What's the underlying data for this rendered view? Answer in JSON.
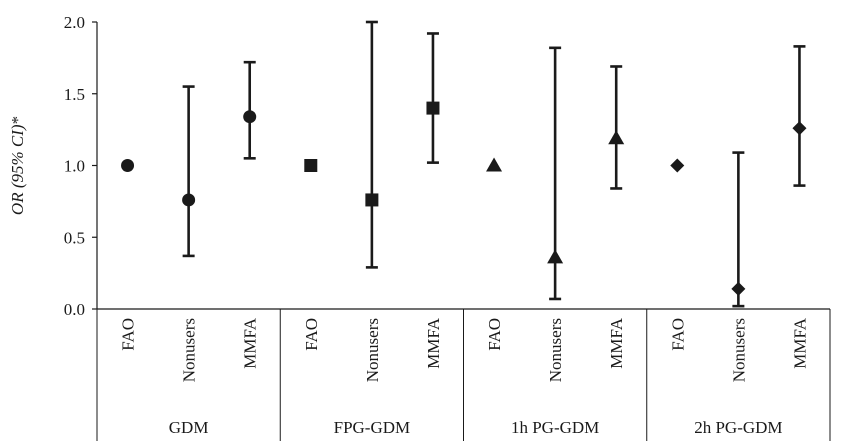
{
  "chart_data": {
    "type": "scatter",
    "subtype": "point-with-error-bars",
    "ylabel": {
      "italic_part": "OR (95% CI)",
      "suffix": "*"
    },
    "ylim": [
      0.0,
      2.0
    ],
    "yticks": [
      "0.0",
      "0.5",
      "1.0",
      "1.5",
      "2.0"
    ],
    "grid": false,
    "legend": "none",
    "colors": {
      "marker": "#1a1a1a",
      "axis": "#1a1a1a"
    },
    "groups": [
      {
        "name": "GDM",
        "marker": "circle",
        "points": [
          {
            "category": "FAO",
            "or": 1.0,
            "ci_low": null,
            "ci_high": null
          },
          {
            "category": "Nonusers",
            "or": 0.76,
            "ci_low": 0.37,
            "ci_high": 1.55
          },
          {
            "category": "MMFA",
            "or": 1.34,
            "ci_low": 1.05,
            "ci_high": 1.72
          }
        ]
      },
      {
        "name": "FPG-GDM",
        "marker": "square",
        "points": [
          {
            "category": "FAO",
            "or": 1.0,
            "ci_low": null,
            "ci_high": null
          },
          {
            "category": "Nonusers",
            "or": 0.76,
            "ci_low": 0.29,
            "ci_high": 2.0
          },
          {
            "category": "MMFA",
            "or": 1.4,
            "ci_low": 1.02,
            "ci_high": 1.92
          }
        ]
      },
      {
        "name": "1h PG-GDM",
        "marker": "triangle",
        "points": [
          {
            "category": "FAO",
            "or": 1.0,
            "ci_low": null,
            "ci_high": null
          },
          {
            "category": "Nonusers",
            "or": 0.36,
            "ci_low": 0.07,
            "ci_high": 1.82
          },
          {
            "category": "MMFA",
            "or": 1.19,
            "ci_low": 0.84,
            "ci_high": 1.69
          }
        ]
      },
      {
        "name": "2h PG-GDM",
        "marker": "diamond",
        "points": [
          {
            "category": "FAO",
            "or": 1.0,
            "ci_low": null,
            "ci_high": null
          },
          {
            "category": "Nonusers",
            "or": 0.14,
            "ci_low": 0.02,
            "ci_high": 1.09
          },
          {
            "category": "MMFA",
            "or": 1.26,
            "ci_low": 0.86,
            "ci_high": 1.83
          }
        ]
      }
    ]
  }
}
